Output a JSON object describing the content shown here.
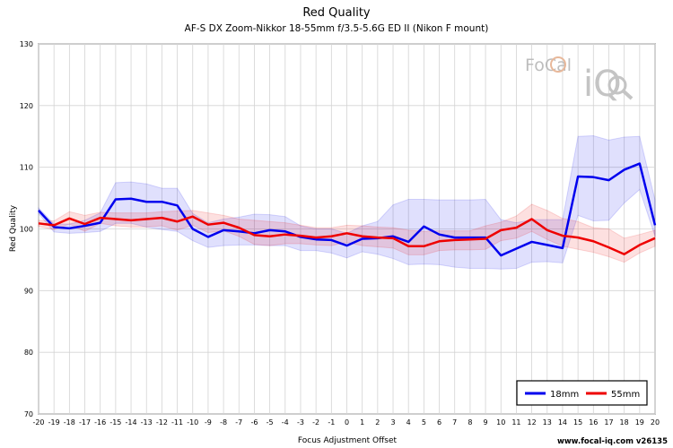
{
  "chart_data": {
    "type": "line",
    "title": "Red Quality",
    "subtitle": "AF-S DX Zoom-Nikkor 18-55mm f/3.5-5.6G ED II (Nikon F mount)",
    "xlabel": "Focus Adjustment Offset",
    "ylabel": "Red Quality",
    "xlim": [
      -20,
      20
    ],
    "ylim": [
      70,
      130
    ],
    "yticks": [
      70,
      80,
      90,
      100,
      110,
      120,
      130
    ],
    "x": [
      -20,
      -19,
      -18,
      -17,
      -16,
      -15,
      -14,
      -13,
      -12,
      -11,
      -10,
      -9,
      -8,
      -7,
      -6,
      -5,
      -4,
      -3,
      -2,
      -1,
      0,
      1,
      2,
      3,
      4,
      5,
      6,
      7,
      8,
      9,
      10,
      11,
      12,
      13,
      14,
      15,
      16,
      17,
      18,
      19,
      20
    ],
    "grid": true,
    "legend_position": "bottom-right",
    "series": [
      {
        "name": "18mm",
        "color": "#0000ee",
        "values": [
          103.0,
          100.3,
          100.1,
          100.5,
          101.0,
          104.8,
          104.9,
          104.4,
          104.4,
          103.8,
          100.0,
          98.7,
          99.8,
          99.6,
          99.3,
          99.8,
          99.6,
          98.7,
          98.3,
          98.2,
          97.3,
          98.4,
          98.5,
          98.8,
          97.9,
          100.4,
          99.1,
          98.6,
          98.6,
          98.6,
          95.7,
          96.8,
          97.9,
          97.4,
          96.9,
          108.5,
          108.4,
          107.9,
          109.6,
          110.6,
          100.6
        ],
        "upper": [
          103.4,
          100.8,
          100.8,
          101.4,
          102.6,
          107.5,
          107.6,
          107.3,
          106.6,
          106.6,
          102.5,
          101.0,
          101.6,
          101.9,
          102.4,
          102.3,
          102.0,
          100.5,
          100.0,
          100.0,
          99.3,
          100.5,
          101.2,
          103.9,
          104.8,
          104.8,
          104.7,
          104.7,
          104.7,
          104.8,
          101.5,
          101.0,
          101.5,
          101.5,
          101.5,
          115.0,
          115.1,
          114.4,
          114.9,
          115.0,
          104.7
        ],
        "lower": [
          102.5,
          99.5,
          99.3,
          99.4,
          99.6,
          100.9,
          100.9,
          100.3,
          99.9,
          99.6,
          98.1,
          97.0,
          97.3,
          97.4,
          97.4,
          97.3,
          97.3,
          96.5,
          96.5,
          96.1,
          95.3,
          96.3,
          95.9,
          95.2,
          94.2,
          94.3,
          94.2,
          93.8,
          93.6,
          93.6,
          93.5,
          93.6,
          94.6,
          94.7,
          94.5,
          102.2,
          101.3,
          101.4,
          104.2,
          106.4,
          98.8
        ]
      },
      {
        "name": "55mm",
        "color": "#ee0000",
        "values": [
          100.9,
          100.6,
          101.7,
          100.8,
          101.8,
          101.6,
          101.4,
          101.6,
          101.8,
          101.2,
          102.0,
          100.7,
          101.0,
          100.2,
          99.0,
          98.8,
          99.1,
          98.9,
          98.6,
          98.8,
          99.3,
          98.8,
          98.6,
          98.5,
          97.2,
          97.2,
          98.0,
          98.2,
          98.3,
          98.4,
          99.8,
          100.2,
          101.6,
          99.8,
          98.9,
          98.6,
          98.0,
          97.0,
          95.9,
          97.4,
          98.5
        ],
        "upper": [
          101.4,
          101.3,
          102.8,
          102.2,
          102.7,
          102.6,
          102.6,
          102.6,
          102.8,
          102.9,
          103.0,
          102.6,
          102.2,
          101.6,
          101.4,
          101.2,
          101.0,
          100.6,
          100.2,
          100.2,
          100.6,
          100.5,
          100.3,
          100.2,
          99.8,
          99.6,
          99.7,
          99.7,
          99.7,
          100.5,
          101.1,
          102.1,
          104.0,
          103.0,
          101.7,
          101.2,
          100.2,
          100.0,
          98.5,
          99.1,
          99.8
        ],
        "lower": [
          100.4,
          99.9,
          100.8,
          99.6,
          100.9,
          100.5,
          100.3,
          100.3,
          100.5,
          99.8,
          100.6,
          99.4,
          99.7,
          98.8,
          97.5,
          97.3,
          97.6,
          97.6,
          97.4,
          97.3,
          97.8,
          97.3,
          97.1,
          96.9,
          95.8,
          95.8,
          96.5,
          96.6,
          96.6,
          96.7,
          98.1,
          98.5,
          99.6,
          98.3,
          97.2,
          96.7,
          96.2,
          95.5,
          94.6,
          96.1,
          97.2
        ]
      }
    ]
  },
  "logo": {
    "text_top": "FoCal",
    "text_bottom": "iQ",
    "name": "focal-iq-logo"
  },
  "watermark": "www.focal-iq.com  v26135"
}
